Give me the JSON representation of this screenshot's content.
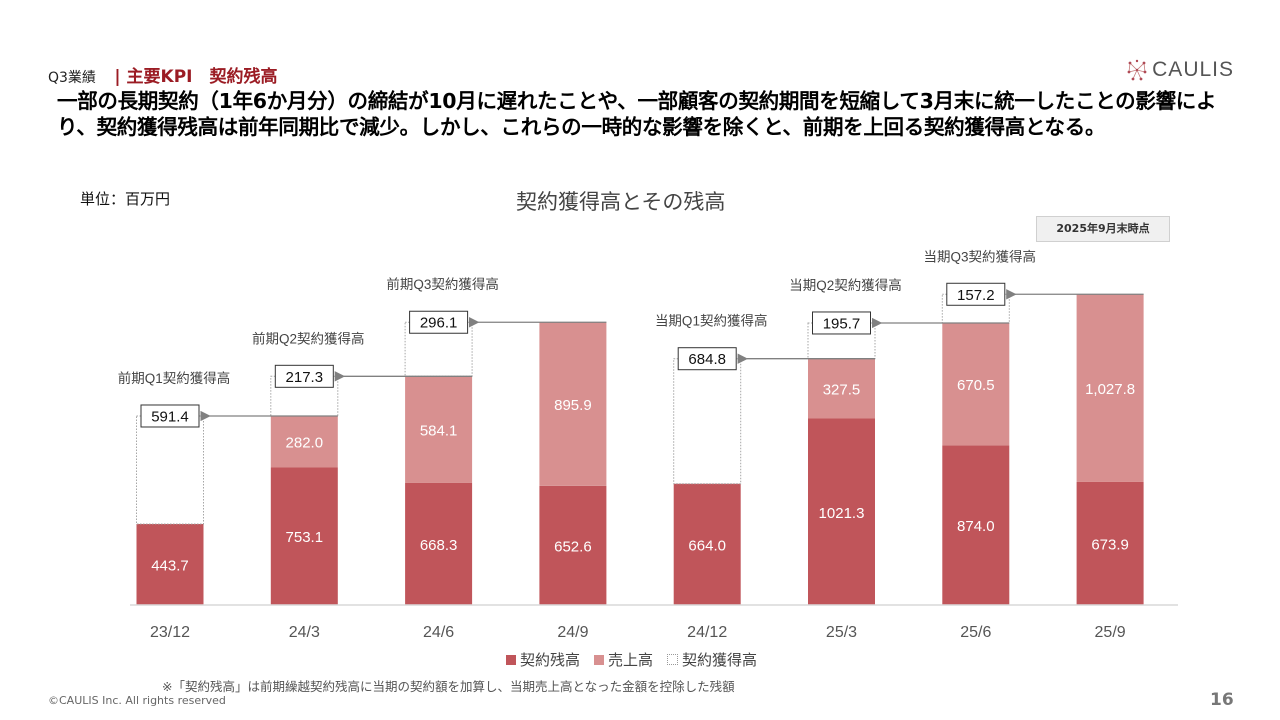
{
  "header": {
    "section": "Q3業績",
    "kpi_title": "| 主要KPI　契約残高",
    "headline": "一部の長期契約（1年6か月分）の締結が10月に遅れたことや、一部顧客の契約期間を短縮して3月末に統一したことの影響により、契約獲得残高は前年同期比で減少。しかし、これらの一時的な影響を除くと、前期を上回る契約獲得高となる。",
    "logo_text": "CAULIS"
  },
  "unit_label": "単位：百万円",
  "as_of_badge": "2025年9月末時点",
  "colors": {
    "contract_balance": "#c0555a",
    "sales": "#d89090",
    "accent": "#9b1c24",
    "arrow": "#808080"
  },
  "chart_data": {
    "type": "bar",
    "stacked": true,
    "title": "契約獲得高とその残高",
    "xlabel": "",
    "ylabel": "",
    "unit": "百万円",
    "categories": [
      "23/12",
      "24/3",
      "24/6",
      "24/9",
      "24/12",
      "25/3",
      "25/6",
      "25/9"
    ],
    "series": [
      {
        "name": "契約残高",
        "values": [
          443.7,
          753.1,
          668.3,
          652.6,
          664.0,
          1021.3,
          874.0,
          673.9
        ],
        "labels": [
          "443.7",
          "753.1",
          "668.3",
          "652.6",
          "664.0",
          "1021.3",
          "874.0",
          "673.9"
        ]
      },
      {
        "name": "売上高",
        "values": [
          0,
          282.0,
          584.1,
          895.9,
          0,
          327.5,
          670.5,
          1027.8
        ],
        "labels": [
          "",
          "282.0",
          "584.1",
          "895.9",
          "",
          "327.5",
          "670.5",
          "1,027.8"
        ]
      },
      {
        "name": "契約獲得高",
        "values": [
          591.4,
          217.3,
          296.1,
          0,
          684.8,
          195.7,
          157.2,
          0
        ],
        "labels": [
          "591.4",
          "217.3",
          "296.1",
          "",
          "684.8",
          "195.7",
          "157.2",
          ""
        ]
      }
    ],
    "annotations": [
      {
        "category": "23/12",
        "text": "前期Q1契約獲得高"
      },
      {
        "category": "24/3",
        "text": "前期Q2契約獲得高"
      },
      {
        "category": "24/6",
        "text": "前期Q3契約獲得高"
      },
      {
        "category": "24/12",
        "text": "当期Q1契約獲得高"
      },
      {
        "category": "25/3",
        "text": "当期Q2契約獲得高"
      },
      {
        "category": "25/6",
        "text": "当期Q3契約獲得高"
      }
    ],
    "legend": {
      "position": "bottom",
      "items": [
        "契約残高",
        "売上高",
        "契約獲得高"
      ]
    },
    "grid": false
  },
  "footnote": "※「契約残高」は前期繰越契約残高に当期の契約額を加算し、当期売上高となった金額を控除した残額",
  "footer": {
    "copyright": "©CAULIS Inc. All rights reserved",
    "page_number": "16"
  }
}
